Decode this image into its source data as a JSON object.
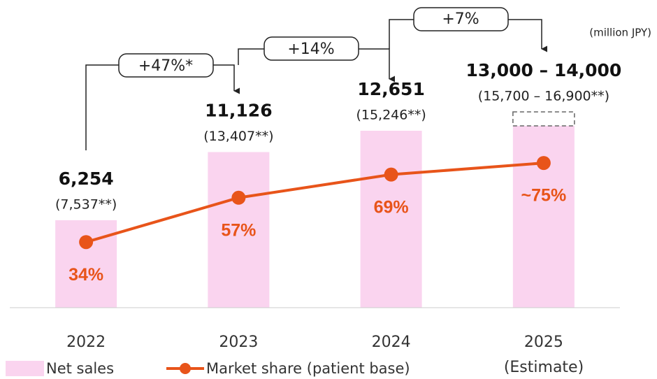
{
  "chart_data": {
    "type": "bar_line",
    "categories": [
      "2022",
      "2023",
      "2024",
      "2025"
    ],
    "category_note": "(Estimate)",
    "unit_label": "(million JPY)",
    "ylim": [
      0,
      20000
    ],
    "y2lim": [
      0,
      145
    ],
    "series": [
      {
        "name": "Net sales",
        "color": "#fad4ef",
        "values": [
          6254,
          11126,
          12651,
          13000
        ],
        "value_labels": [
          "6,254",
          "11,126",
          "12,651",
          "13,000 – 14,000"
        ],
        "estimate_upper": 14000
      },
      {
        "name": "Market share (patient base)",
        "color": "#e8541a",
        "axis": "y2",
        "values": [
          34,
          57,
          69,
          75
        ],
        "value_labels": [
          "34%",
          "57%",
          "69%",
          "~75%"
        ]
      }
    ],
    "secondary_labels": [
      "(7,537**)",
      "(13,407**)",
      "(15,246**)",
      "(15,700 – 16,900**)"
    ],
    "growth_labels": [
      "+47%*",
      "+14%",
      "+7%"
    ]
  }
}
